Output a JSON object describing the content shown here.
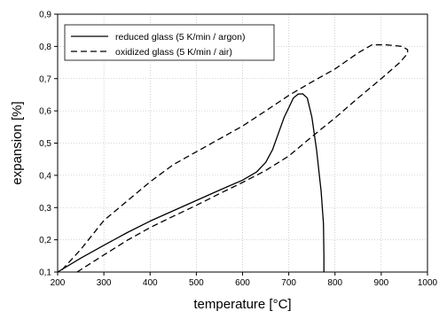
{
  "chart_data": {
    "type": "line",
    "title": "",
    "xlabel": "temperature [°C]",
    "ylabel": "expansion [%]",
    "xlim": [
      200,
      1000
    ],
    "ylim": [
      0.1,
      0.9
    ],
    "x_ticks": [
      200,
      300,
      400,
      500,
      600,
      700,
      800,
      900,
      1000
    ],
    "y_ticks": [
      0.1,
      0.2,
      0.3,
      0.4,
      0.5,
      0.6,
      0.7,
      0.8,
      0.9
    ],
    "x_tick_labels": [
      "200",
      "300",
      "400",
      "500",
      "600",
      "700",
      "800",
      "900",
      "1000"
    ],
    "y_tick_labels": [
      "0,1",
      "0,2",
      "0,3",
      "0,4",
      "0,5",
      "0,6",
      "0,7",
      "0,8",
      "0,9"
    ],
    "grid": true,
    "legend_position": "top-left",
    "series": [
      {
        "name": "reduced glass (5 K/min / argon)",
        "style": "solid",
        "color": "#000000",
        "points": [
          [
            200,
            0.1
          ],
          [
            250,
            0.143
          ],
          [
            300,
            0.183
          ],
          [
            350,
            0.222
          ],
          [
            400,
            0.258
          ],
          [
            450,
            0.29
          ],
          [
            500,
            0.322
          ],
          [
            550,
            0.354
          ],
          [
            600,
            0.385
          ],
          [
            630,
            0.41
          ],
          [
            650,
            0.44
          ],
          [
            665,
            0.48
          ],
          [
            680,
            0.54
          ],
          [
            690,
            0.58
          ],
          [
            700,
            0.61
          ],
          [
            710,
            0.64
          ],
          [
            720,
            0.652
          ],
          [
            730,
            0.653
          ],
          [
            740,
            0.64
          ],
          [
            750,
            0.58
          ],
          [
            760,
            0.48
          ],
          [
            770,
            0.35
          ],
          [
            775,
            0.25
          ],
          [
            776,
            0.15
          ],
          [
            776,
            0.1
          ]
        ]
      },
      {
        "name": "oxidized glass (5 K/min / air)",
        "style": "dashed",
        "color": "#000000",
        "points": [
          [
            242,
            0.1
          ],
          [
            300,
            0.153
          ],
          [
            350,
            0.198
          ],
          [
            400,
            0.238
          ],
          [
            450,
            0.273
          ],
          [
            500,
            0.307
          ],
          [
            550,
            0.343
          ],
          [
            600,
            0.378
          ],
          [
            650,
            0.415
          ],
          [
            700,
            0.46
          ],
          [
            750,
            0.52
          ],
          [
            800,
            0.578
          ],
          [
            850,
            0.64
          ],
          [
            900,
            0.7
          ],
          [
            940,
            0.75
          ],
          [
            957,
            0.778
          ],
          [
            957,
            0.79
          ],
          [
            945,
            0.8
          ],
          [
            910,
            0.805
          ],
          [
            880,
            0.805
          ],
          [
            850,
            0.78
          ],
          [
            800,
            0.73
          ],
          [
            750,
            0.69
          ],
          [
            700,
            0.648
          ],
          [
            650,
            0.6
          ],
          [
            600,
            0.553
          ],
          [
            550,
            0.513
          ],
          [
            500,
            0.473
          ],
          [
            450,
            0.433
          ],
          [
            400,
            0.38
          ],
          [
            350,
            0.32
          ],
          [
            300,
            0.26
          ],
          [
            250,
            0.17
          ],
          [
            205,
            0.1
          ]
        ]
      }
    ]
  }
}
